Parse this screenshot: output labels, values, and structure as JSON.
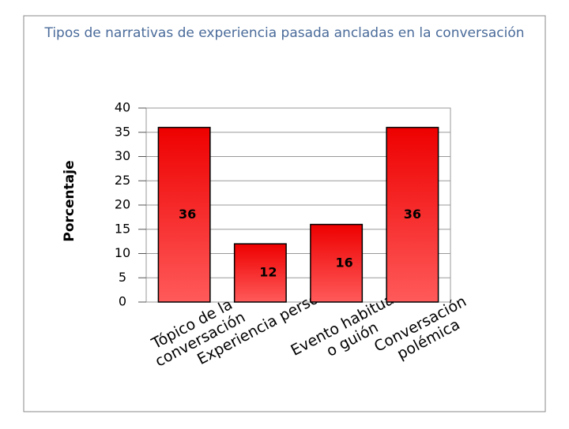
{
  "chart_data": {
    "type": "bar",
    "title": "Tipos de narrativas de experiencia pasada ancladas en la conversación",
    "y_label": "Porcentaje",
    "categories": [
      "Tópico de la conversación",
      "Experiencia personal",
      "Evento habitual o guión",
      "Conversación polémica"
    ],
    "values": [
      36,
      12,
      16,
      36
    ],
    "color": "#e8141c",
    "ylim": [
      0,
      40
    ],
    "yticks": [
      0,
      5,
      10,
      15,
      20,
      25,
      30,
      35,
      40
    ],
    "grid": true
  }
}
